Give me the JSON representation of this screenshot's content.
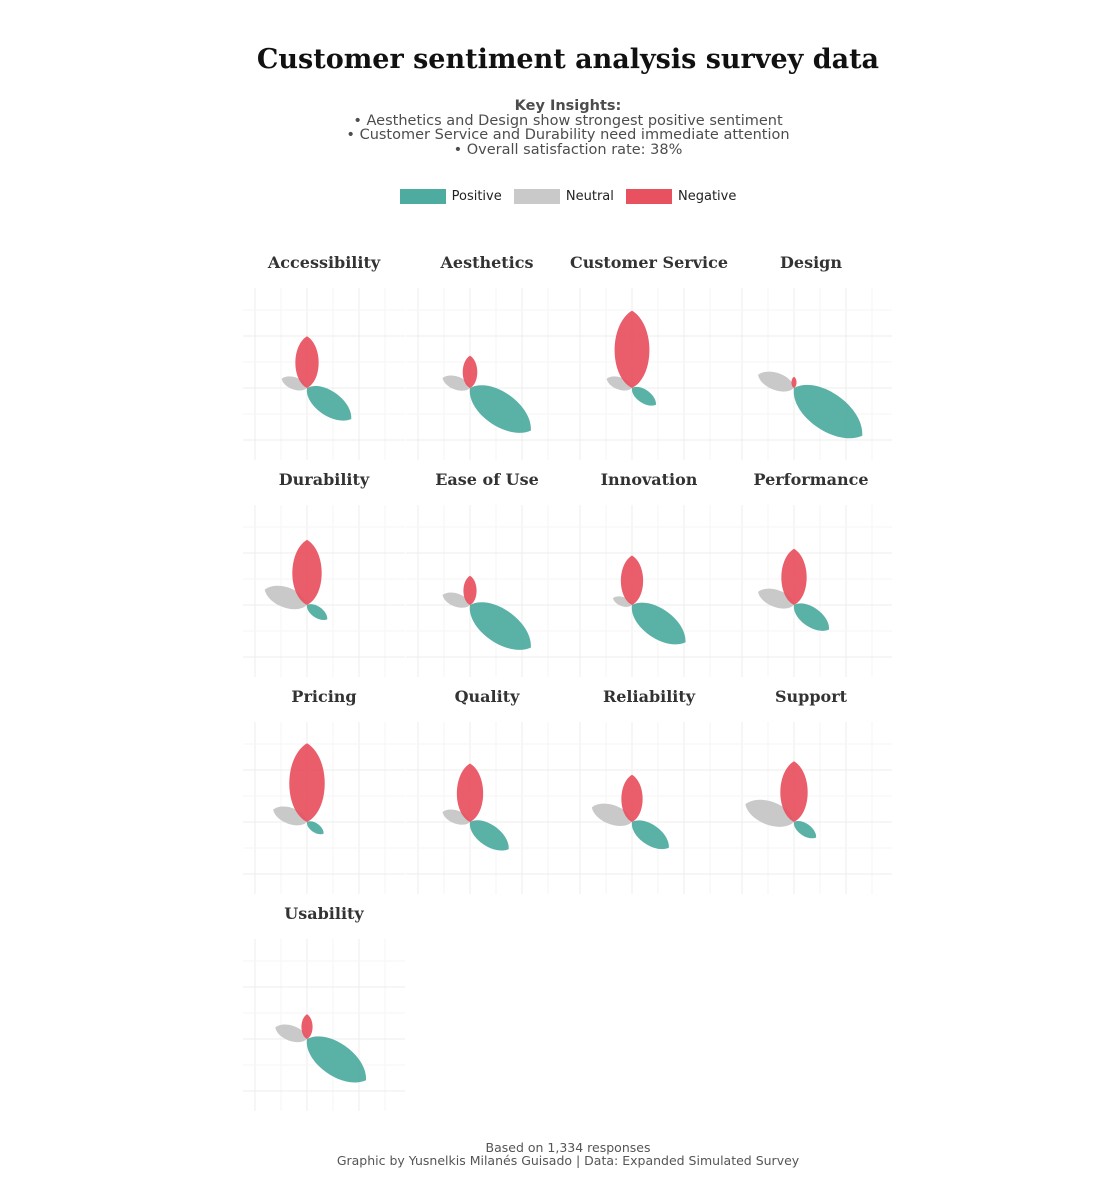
{
  "title": "Customer sentiment analysis survey data",
  "insights": {
    "heading": "Key Insights:",
    "lines": [
      "• Aesthetics and Design show strongest positive sentiment",
      "• Customer Service and Durability need immediate attention",
      "• Overall satisfaction rate: 38%"
    ]
  },
  "legend": [
    {
      "label": "Positive",
      "color": "#4dab9f"
    },
    {
      "label": "Neutral",
      "color": "#c9c9c9"
    },
    {
      "label": "Negative",
      "color": "#e8515f"
    }
  ],
  "chart_data": {
    "type": "petal",
    "series": [
      "Positive",
      "Neutral",
      "Negative"
    ],
    "colors": {
      "Positive": "#4dab9f",
      "Neutral": "#c9c9c9",
      "Negative": "#e8515f"
    },
    "panels": [
      {
        "category": "Accessibility",
        "values": {
          "Positive": 1.2,
          "Neutral": 0.6,
          "Negative": 1.15
        }
      },
      {
        "category": "Aesthetics",
        "values": {
          "Positive": 1.65,
          "Neutral": 0.65,
          "Negative": 0.72
        }
      },
      {
        "category": "Customer Service",
        "values": {
          "Positive": 0.65,
          "Neutral": 0.6,
          "Negative": 1.72
        }
      },
      {
        "category": "Design",
        "values": {
          "Positive": 1.85,
          "Neutral": 0.85,
          "Negative": 0.25
        }
      },
      {
        "category": "Durability",
        "values": {
          "Positive": 0.55,
          "Neutral": 1.0,
          "Negative": 1.45
        }
      },
      {
        "category": "Ease of Use",
        "values": {
          "Positive": 1.65,
          "Neutral": 0.65,
          "Negative": 0.65
        }
      },
      {
        "category": "Innovation",
        "values": {
          "Positive": 1.45,
          "Neutral": 0.45,
          "Negative": 1.1
        }
      },
      {
        "category": "Performance",
        "values": {
          "Positive": 0.95,
          "Neutral": 0.85,
          "Negative": 1.25
        }
      },
      {
        "category": "Pricing",
        "values": {
          "Positive": 0.45,
          "Neutral": 0.8,
          "Negative": 1.75
        }
      },
      {
        "category": "Quality",
        "values": {
          "Positive": 1.05,
          "Neutral": 0.65,
          "Negative": 1.3
        }
      },
      {
        "category": "Reliability",
        "values": {
          "Positive": 1.0,
          "Neutral": 0.95,
          "Negative": 1.05
        }
      },
      {
        "category": "Support",
        "values": {
          "Positive": 0.6,
          "Neutral": 1.15,
          "Negative": 1.35
        }
      },
      {
        "category": "Usability",
        "values": {
          "Positive": 1.6,
          "Neutral": 0.75,
          "Negative": 0.55
        }
      }
    ]
  },
  "footer": {
    "line1": "Based on 1,334 responses",
    "line2": "Graphic by Yusnelkis Milanés Guisado | Data: Expanded Simulated Survey"
  }
}
